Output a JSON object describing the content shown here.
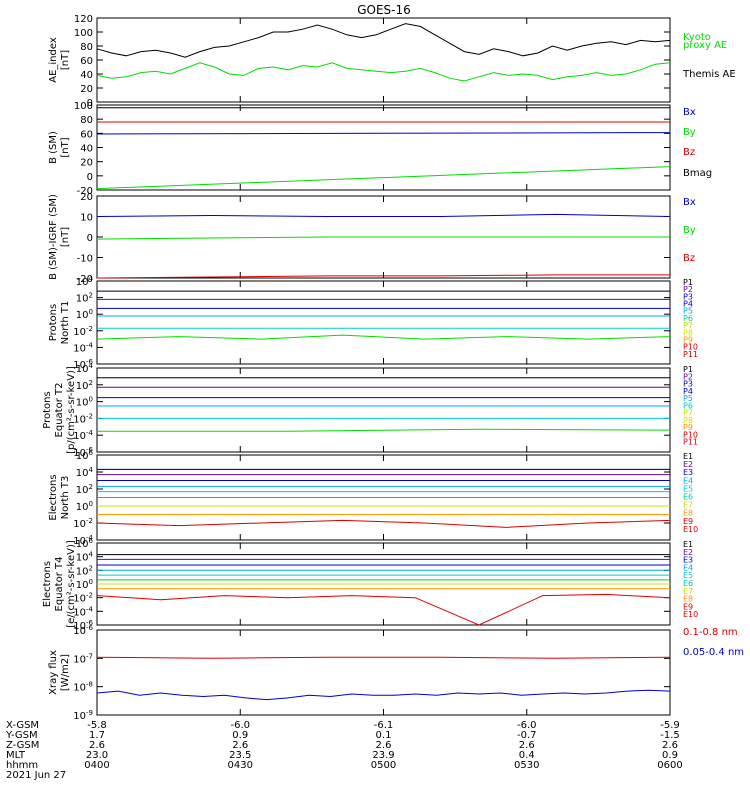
{
  "title": "GOES-16",
  "colors": {
    "black": "#000000",
    "red": "#dd0000",
    "green": "#00dd00",
    "blue": "#0000cc",
    "cyan": "#00cccc",
    "yellow": "#dddd00",
    "orange": "#ff9900",
    "purple": "#6600aa",
    "magenta": "#cc00cc",
    "teal": "#00ccaa"
  },
  "chart_data": [
    {
      "type": "line",
      "panel": "AE",
      "ylabel": [
        "AE_index",
        "[nT]"
      ],
      "ylim": [
        0,
        120
      ],
      "yticks": [
        "0",
        "20",
        "40",
        "60",
        "80",
        "100",
        "120"
      ],
      "legend": [
        {
          "text": "Kyoto",
          "color": "#00dd00"
        },
        {
          "text": "proxy AE",
          "color": "#00dd00"
        },
        {
          "text": "Themis AE",
          "color": "#000000"
        }
      ],
      "series": [
        {
          "name": "Themis AE",
          "color": "#000000",
          "values": [
            76,
            70,
            66,
            72,
            74,
            70,
            64,
            72,
            78,
            80,
            86,
            92,
            100,
            100,
            104,
            110,
            104,
            96,
            92,
            96,
            104,
            112,
            108,
            96,
            84,
            72,
            68,
            76,
            72,
            66,
            70,
            80,
            74,
            80,
            84,
            86,
            82,
            88,
            86,
            88
          ]
        },
        {
          "name": "Kyoto proxy AE",
          "color": "#00dd00",
          "values": [
            38,
            34,
            36,
            42,
            44,
            40,
            48,
            56,
            50,
            40,
            38,
            48,
            50,
            46,
            52,
            50,
            56,
            48,
            46,
            44,
            42,
            44,
            48,
            42,
            34,
            30,
            36,
            42,
            38,
            40,
            38,
            32,
            36,
            38,
            42,
            38,
            40,
            46,
            54,
            56
          ]
        }
      ]
    },
    {
      "type": "line",
      "panel": "B (SM)",
      "ylabel": [
        "B (SM)",
        "[nT]"
      ],
      "ylim": [
        -20,
        100
      ],
      "yticks": [
        "-20",
        "0",
        "20",
        "40",
        "60",
        "80",
        "100"
      ],
      "legend": [
        {
          "text": "Bx",
          "color": "#0000cc"
        },
        {
          "text": "By",
          "color": "#00dd00"
        },
        {
          "text": "Bz",
          "color": "#dd0000"
        },
        {
          "text": "Bmag",
          "color": "#000000"
        }
      ],
      "series": [
        {
          "name": "Bmag",
          "color": "#000000",
          "values": [
            96,
            96
          ]
        },
        {
          "name": "Bz",
          "color": "#dd0000",
          "values": [
            76,
            76
          ]
        },
        {
          "name": "Bx",
          "color": "#0000cc",
          "values": [
            59,
            61
          ]
        },
        {
          "name": "By",
          "color": "#00dd00",
          "values": [
            -18,
            13
          ]
        }
      ]
    },
    {
      "type": "line",
      "panel": "B (SM)-IGRF (SM)",
      "ylabel": [
        "B (SM)-IGRF (SM)",
        "[nT]"
      ],
      "ylim": [
        -20,
        20
      ],
      "yticks": [
        "-20",
        "-10",
        "0",
        "10",
        "20"
      ],
      "legend": [
        {
          "text": "Bx",
          "color": "#0000cc"
        },
        {
          "text": "By",
          "color": "#00dd00"
        },
        {
          "text": "Bz",
          "color": "#dd0000"
        }
      ],
      "series": [
        {
          "name": "Bx",
          "color": "#0000cc",
          "values": [
            10,
            10.5,
            10,
            10,
            11,
            10
          ]
        },
        {
          "name": "By",
          "color": "#00dd00",
          "values": [
            -1,
            -0.5,
            0,
            0,
            0,
            0
          ]
        },
        {
          "name": "Bz",
          "color": "#dd0000",
          "values": [
            -20,
            -19.5,
            -19,
            -19,
            -18.5,
            -18.5
          ]
        }
      ]
    },
    {
      "type": "line",
      "panel": "Protons North T1",
      "ylabel": [
        "Protons",
        "North T1"
      ],
      "yscale": "log",
      "ylim": [
        1e-06,
        10000.0
      ],
      "yticks": [
        "10^-6",
        "10^-4",
        "10^-2",
        "10^0",
        "10^2",
        "10^4"
      ],
      "legend": [
        {
          "text": "P1",
          "color": "#000000"
        },
        {
          "text": "P2",
          "color": "#6600aa"
        },
        {
          "text": "P3",
          "color": "#0000cc"
        },
        {
          "text": "P4",
          "color": "#0000cc"
        },
        {
          "text": "P5",
          "color": "#00aaee"
        },
        {
          "text": "P6",
          "color": "#00ccaa"
        },
        {
          "text": "P7",
          "color": "#ccdd00"
        },
        {
          "text": "P8",
          "color": "#dddd00"
        },
        {
          "text": "P9",
          "color": "#ff9900"
        },
        {
          "text": "P10",
          "color": "#dd0000"
        },
        {
          "text": "P11",
          "color": "#dd0000"
        }
      ],
      "series": [
        {
          "name": "P1",
          "color": "#000000",
          "values": [
            600,
            600
          ]
        },
        {
          "name": "P2",
          "color": "#6600aa",
          "values": [
            60,
            60
          ]
        },
        {
          "name": "P3",
          "color": "#0000cc",
          "values": [
            5,
            5
          ]
        },
        {
          "name": "P4",
          "color": "#00aaee",
          "values": [
            0.6,
            0.6
          ]
        },
        {
          "name": "P5",
          "color": "#00cccc",
          "values": [
            0.02,
            0.02
          ]
        },
        {
          "name": "P6",
          "color": "#00dd00",
          "values": [
            0.001,
            0.002,
            0.001,
            0.003,
            0.001,
            0.002,
            0.001,
            0.002
          ]
        }
      ]
    },
    {
      "type": "line",
      "panel": "Protons Equator T2",
      "ylabel": [
        "Protons",
        "Equator T2",
        "[p/(cm²-s-sr-keV)]"
      ],
      "yscale": "log",
      "ylim": [
        1e-06,
        10000.0
      ],
      "yticks": [
        "10^-6",
        "10^-4",
        "10^-2",
        "10^0",
        "10^2",
        "10^4"
      ],
      "legend": [
        {
          "text": "P1",
          "color": "#000000"
        },
        {
          "text": "P2",
          "color": "#6600aa"
        },
        {
          "text": "P3",
          "color": "#0000cc"
        },
        {
          "text": "P4",
          "color": "#0000cc"
        },
        {
          "text": "P5",
          "color": "#00aaee"
        },
        {
          "text": "P6",
          "color": "#00ccaa"
        },
        {
          "text": "P7",
          "color": "#ccdd00"
        },
        {
          "text": "P8",
          "color": "#dddd00"
        },
        {
          "text": "P9",
          "color": "#ff9900"
        },
        {
          "text": "P10",
          "color": "#dd0000"
        },
        {
          "text": "P11",
          "color": "#dd0000"
        }
      ],
      "series": [
        {
          "name": "P1",
          "color": "#000000",
          "values": [
            700,
            700
          ]
        },
        {
          "name": "P2",
          "color": "#6600aa",
          "values": [
            50,
            50
          ]
        },
        {
          "name": "P3",
          "color": "#0000cc",
          "values": [
            3,
            3
          ]
        },
        {
          "name": "P4",
          "color": "#00aaee",
          "values": [
            0.3,
            0.3
          ]
        },
        {
          "name": "P5",
          "color": "#00cccc",
          "values": [
            0.01,
            0.01
          ]
        },
        {
          "name": "P6",
          "color": "#00dd00",
          "values": [
            0.0003,
            0.0003,
            0.0005,
            0.0004
          ]
        }
      ]
    },
    {
      "type": "line",
      "panel": "Electrons North T3",
      "ylabel": [
        "Electrons",
        "North T3"
      ],
      "yscale": "log",
      "ylim": [
        0.0001,
        1000000.0
      ],
      "yticks": [
        "10^-4",
        "10^-2",
        "10^0",
        "10^2",
        "10^4",
        "10^6"
      ],
      "legend": [
        {
          "text": "E1",
          "color": "#000000"
        },
        {
          "text": "E2",
          "color": "#6600aa"
        },
        {
          "text": "E3",
          "color": "#0000cc"
        },
        {
          "text": "E4",
          "color": "#00aaee"
        },
        {
          "text": "E5",
          "color": "#00cccc"
        },
        {
          "text": "E6",
          "color": "#00ccaa"
        },
        {
          "text": "E7",
          "color": "#ccdd00"
        },
        {
          "text": "E8",
          "color": "#ff9900"
        },
        {
          "text": "E9",
          "color": "#dd0000"
        },
        {
          "text": "E10",
          "color": "#dd0000"
        }
      ],
      "series": [
        {
          "name": "E1",
          "color": "#000000",
          "values": [
            20000,
            20000
          ]
        },
        {
          "name": "E2",
          "color": "#6600aa",
          "values": [
            5000,
            5000
          ]
        },
        {
          "name": "E3",
          "color": "#0000cc",
          "values": [
            1000,
            1000
          ]
        },
        {
          "name": "E4",
          "color": "#00aaee",
          "values": [
            200,
            200
          ]
        },
        {
          "name": "E5",
          "color": "#00cccc",
          "values": [
            50,
            50
          ]
        },
        {
          "name": "E6",
          "color": "#00dd00",
          "values": [
            10,
            10
          ]
        },
        {
          "name": "E7",
          "color": "#dddd00",
          "values": [
            1,
            1
          ]
        },
        {
          "name": "E8",
          "color": "#ff9900",
          "values": [
            0.1,
            0.1
          ]
        },
        {
          "name": "E9",
          "color": "#dd0000",
          "values": [
            0.01,
            0.005,
            0.01,
            0.02,
            0.01,
            0.003,
            0.01,
            0.02
          ]
        }
      ]
    },
    {
      "type": "line",
      "panel": "Electrons Equator T4",
      "ylabel": [
        "Electrons",
        "Equator T4",
        "[e/(cm²-s-sr-keV)]"
      ],
      "yscale": "log",
      "ylim": [
        1e-06,
        1000000.0
      ],
      "yticks": [
        "10^-6",
        "10^-4",
        "10^-2",
        "10^0",
        "10^2",
        "10^4",
        "10^6"
      ],
      "legend": [
        {
          "text": "E1",
          "color": "#000000"
        },
        {
          "text": "E2",
          "color": "#6600aa"
        },
        {
          "text": "E3",
          "color": "#0000cc"
        },
        {
          "text": "E4",
          "color": "#00aaee"
        },
        {
          "text": "E5",
          "color": "#00cccc"
        },
        {
          "text": "E6",
          "color": "#00ccaa"
        },
        {
          "text": "E7",
          "color": "#ccdd00"
        },
        {
          "text": "E8",
          "color": "#ff9900"
        },
        {
          "text": "E9",
          "color": "#dd0000"
        },
        {
          "text": "E10",
          "color": "#dd0000"
        }
      ],
      "series": [
        {
          "name": "E1",
          "color": "#000000",
          "values": [
            20000,
            20000
          ]
        },
        {
          "name": "E2",
          "color": "#6600aa",
          "values": [
            4000,
            4000
          ]
        },
        {
          "name": "E3",
          "color": "#0000cc",
          "values": [
            600,
            600
          ]
        },
        {
          "name": "E4",
          "color": "#00aaee",
          "values": [
            100,
            100
          ]
        },
        {
          "name": "E5",
          "color": "#00cccc",
          "values": [
            20,
            20
          ]
        },
        {
          "name": "E6",
          "color": "#00dd00",
          "values": [
            4,
            4
          ]
        },
        {
          "name": "E7",
          "color": "#dddd00",
          "values": [
            1,
            1
          ]
        },
        {
          "name": "E8",
          "color": "#ff9900",
          "values": [
            0.2,
            0.2
          ]
        },
        {
          "name": "E9",
          "color": "#dd0000",
          "values": [
            0.02,
            0.005,
            0.02,
            0.01,
            0.02,
            0.01,
            1e-06,
            0.02,
            0.03,
            0.01
          ]
        }
      ]
    },
    {
      "type": "line",
      "panel": "Xray flux",
      "ylabel": [
        "Xray flux",
        "[W/m2]"
      ],
      "yscale": "log",
      "ylim": [
        1e-09,
        1e-06
      ],
      "yticks": [
        "10^-9",
        "10^-8",
        "10^-7",
        "10^-6"
      ],
      "legend": [
        {
          "text": "0.1-0.8 nm",
          "color": "#dd0000"
        },
        {
          "text": "0.05-0.4 nm",
          "color": "#0000cc"
        }
      ],
      "series": [
        {
          "name": "0.1-0.8 nm",
          "color": "#dd0000",
          "values": [
            1.1e-07,
            1e-07,
            1.1e-07,
            1.1e-07,
            1e-07,
            1.1e-07
          ]
        },
        {
          "name": "0.05-0.4 nm",
          "color": "#0000cc",
          "values": [
            6e-09,
            7e-09,
            5e-09,
            6e-09,
            5e-09,
            4.5e-09,
            5e-09,
            4e-09,
            3.5e-09,
            4e-09,
            5e-09,
            4.5e-09,
            5.5e-09,
            5e-09,
            5e-09,
            5.5e-09,
            5e-09,
            6e-09,
            5.5e-09,
            6e-09,
            5e-09,
            5.5e-09,
            6e-09,
            5.5e-09,
            6e-09,
            7e-09,
            7.5e-09,
            7e-09
          ]
        }
      ]
    }
  ],
  "x_axis": {
    "row_labels": [
      "X-GSM",
      "Y-GSM",
      "Z-GSM",
      "MLT",
      "hhmm"
    ],
    "columns": [
      [
        "-5.8",
        "1.7",
        "2.6",
        "23.0",
        "0400"
      ],
      [
        "-6.0",
        "0.9",
        "2.6",
        "23.5",
        "0430"
      ],
      [
        "-6.1",
        "0.1",
        "2.6",
        "23.9",
        "0500"
      ],
      [
        "-6.0",
        "-0.7",
        "2.6",
        "0.4",
        "0530"
      ],
      [
        "-5.9",
        "-1.5",
        "2.6",
        "0.9",
        "0600"
      ]
    ],
    "date": "2021 Jun 27"
  }
}
